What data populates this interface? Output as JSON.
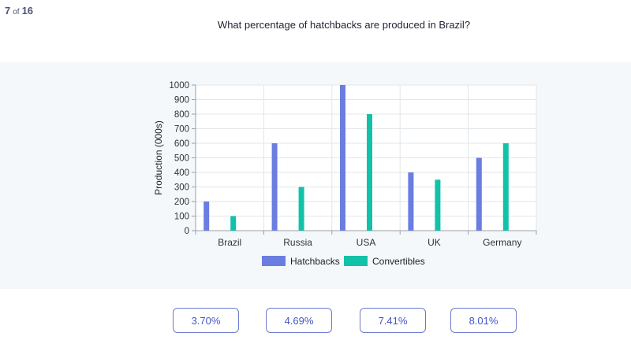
{
  "progress": {
    "current": "7",
    "of_label": "of",
    "total": "16"
  },
  "question": "What percentage of hatchbacks are produced in Brazil?",
  "chart_data": {
    "type": "bar",
    "categories": [
      "Brazil",
      "Russia",
      "USA",
      "UK",
      "Germany"
    ],
    "series": [
      {
        "name": "Hatchbacks",
        "values": [
          200,
          600,
          1000,
          400,
          500
        ],
        "color": "#6a7de0"
      },
      {
        "name": "Convertibles",
        "values": [
          100,
          300,
          800,
          350,
          600
        ],
        "color": "#12c2a8"
      }
    ],
    "ylabel": "Production (000s)",
    "xlabel": "",
    "ylim": [
      0,
      1000
    ],
    "yticks": [
      0,
      100,
      200,
      300,
      400,
      500,
      600,
      700,
      800,
      900,
      1000
    ],
    "grid": true,
    "legend_position": "bottom"
  },
  "answers": [
    {
      "label": "3.70%"
    },
    {
      "label": "4.69%"
    },
    {
      "label": "7.41%"
    },
    {
      "label": "8.01%"
    }
  ]
}
